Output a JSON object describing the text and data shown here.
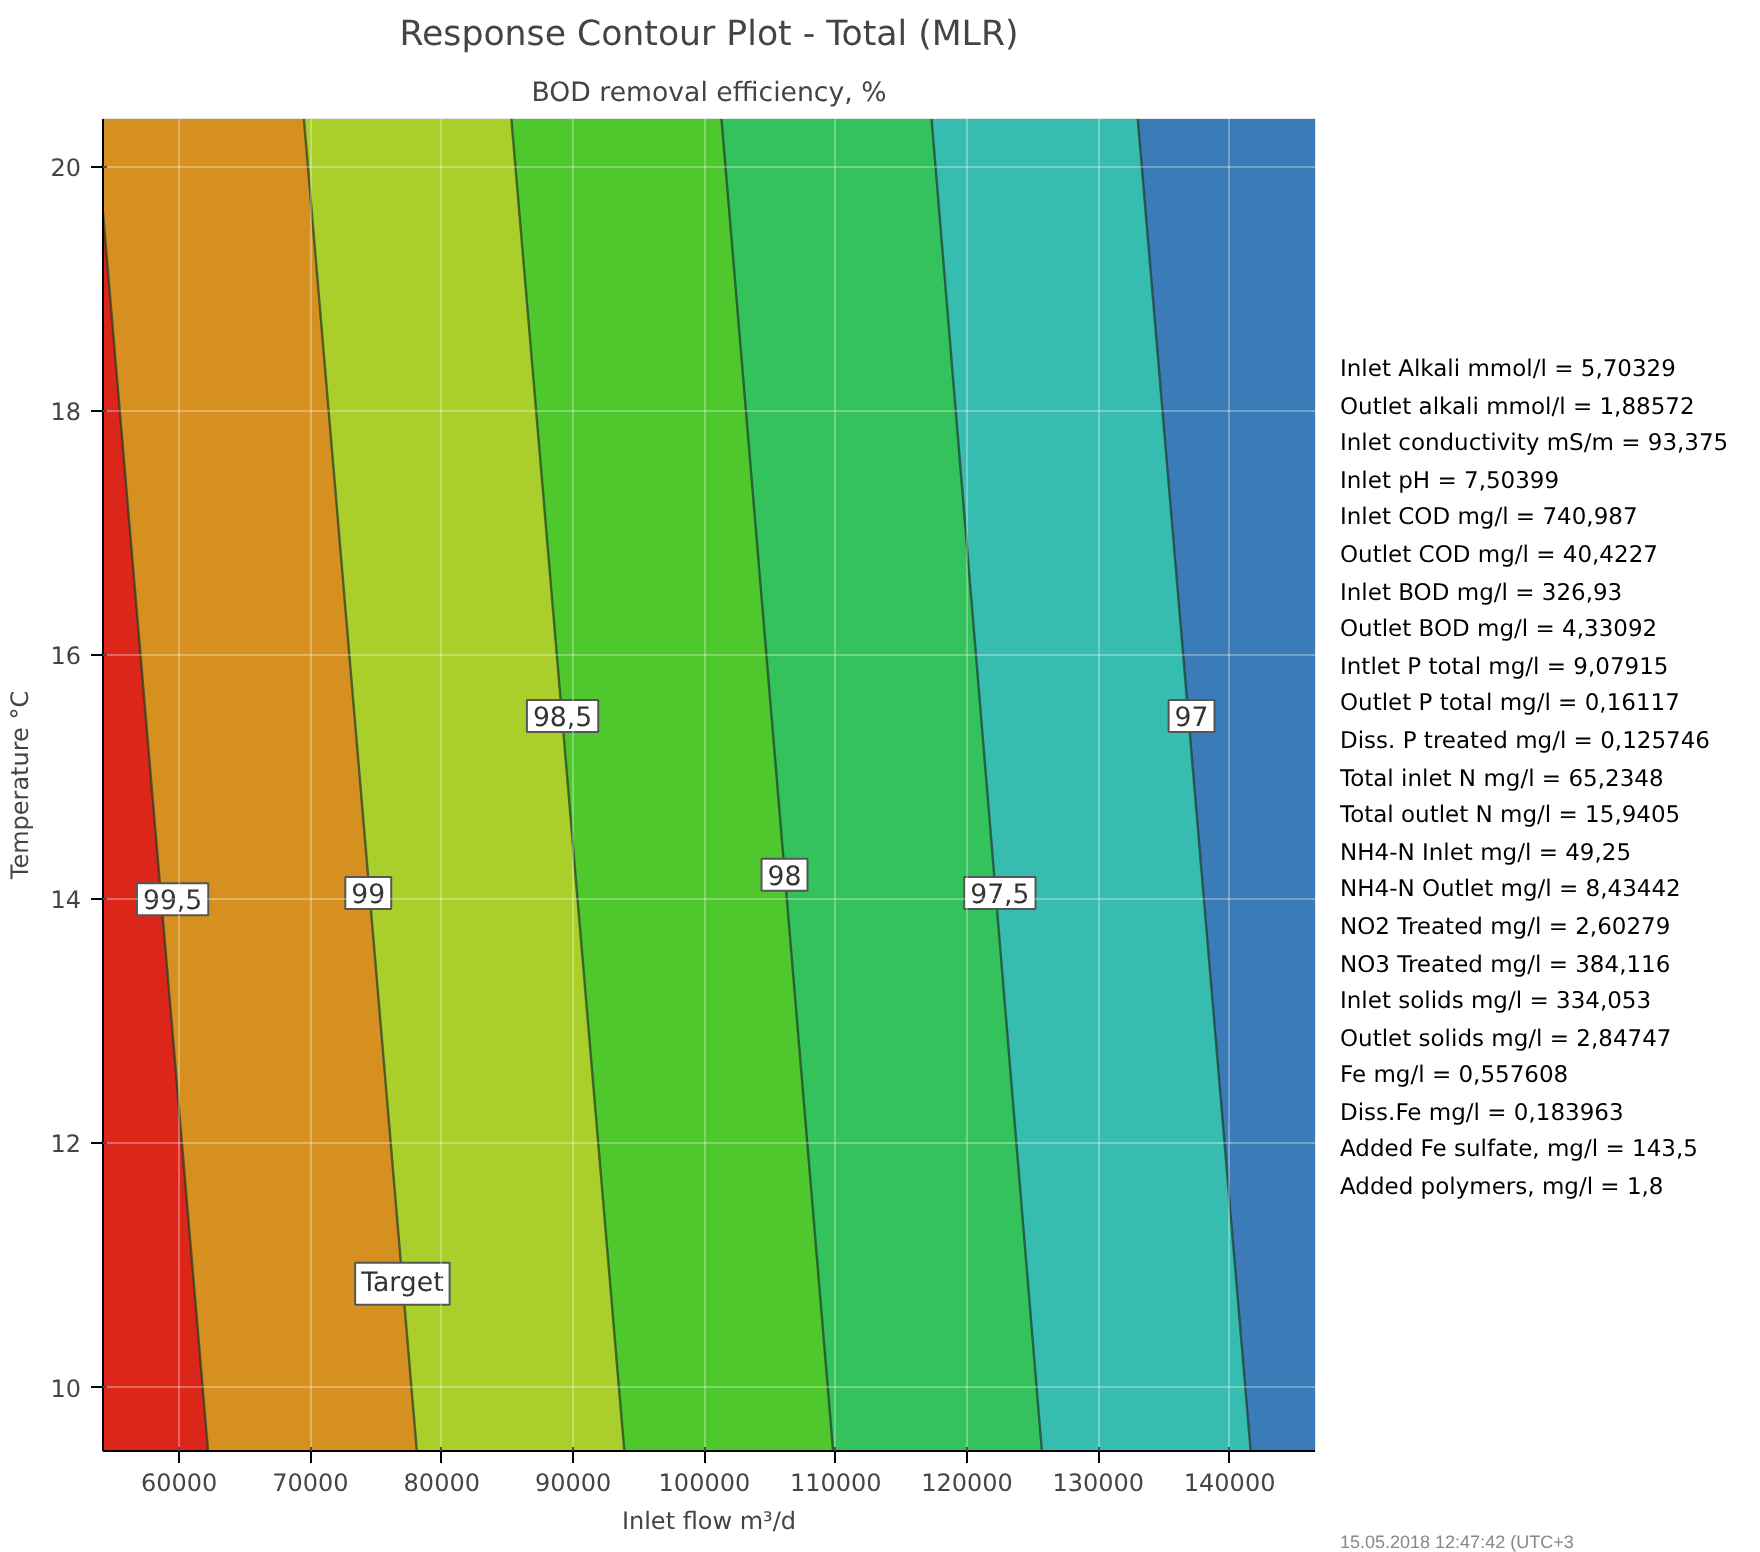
{
  "chart_data": {
    "type": "area",
    "orientation": "horizontal",
    "title": "Response Contour Plot - Total (MLR)",
    "subtitle": "BOD removal efficiency, %",
    "xlabel": "Inlet flow m³/d",
    "ylabel": "Temperature °C",
    "xlim": [
      54200,
      146500
    ],
    "ylim": [
      9.48,
      20.39
    ],
    "xticks": [
      60000,
      70000,
      80000,
      90000,
      100000,
      110000,
      120000,
      130000,
      140000
    ],
    "yticks": [
      10,
      12,
      14,
      16,
      18,
      20
    ],
    "grid": true,
    "bands": [
      {
        "axis": "x",
        "from": 133000,
        "to": 146500,
        "color": "#3b7bb8"
      }
    ],
    "series": [
      {
        "color": "#36bdb0",
        "x": [
          9.48,
          20.39
        ],
        "values": [
          141600,
          133000
        ]
      },
      {
        "color": "#33c25c",
        "x": [
          9.48,
          20.39
        ],
        "values": [
          125700,
          117300
        ]
      },
      {
        "color": "#4ec82c",
        "x": [
          9.48,
          20.39
        ],
        "values": [
          109800,
          101300
        ]
      },
      {
        "color": "#abcf2a",
        "x": [
          9.48,
          20.39
        ],
        "values": [
          93900,
          85300
        ]
      },
      {
        "color": "#d69020",
        "x": [
          9.48,
          20.39
        ],
        "values": [
          78100,
          69500
        ]
      },
      {
        "color": "#dc261a",
        "x": [
          9.48,
          19.62
        ],
        "values": [
          62200,
          54200
        ]
      }
    ],
    "annotations": [
      {
        "text": "99,5",
        "x": 59500,
        "y": 14.0
      },
      {
        "text": "99",
        "x": 74400,
        "y": 14.05
      },
      {
        "text": "98,5",
        "x": 89200,
        "y": 15.5
      },
      {
        "text": "98",
        "x": 106100,
        "y": 14.2
      },
      {
        "text": "97,5",
        "x": 122500,
        "y": 14.05
      },
      {
        "text": "97",
        "x": 137100,
        "y": 15.5
      },
      {
        "text": "Target",
        "x": 77000,
        "y": 10.85
      },
      "Inlet Alkali  mmol/l = 5,70329",
      "Outlet alkali mmol/l = 1,88572",
      "Inlet conductivity  mS/m = 93,375",
      "Inlet pH = 7,50399",
      "Inlet COD  mg/l = 740,987",
      "Outlet COD mg/l = 40,4227",
      "Inlet BOD  mg/l = 326,93",
      "Outlet BOD mg/l = 4,33092",
      "Intlet P total  mg/l = 9,07915",
      "Outlet P total mg/l = 0,16117",
      "Diss. P treated mg/l = 0,125746",
      "Total inlet N mg/l = 65,2348",
      "Total outlet N mg/l = 15,9405",
      "NH4-N Inlet mg/l = 49,25",
      "NH4-N Outlet mg/l = 8,43442",
      "NO2 Treated mg/l = 2,60279",
      "NO3 Treated mg/l = 384,116",
      "Inlet solids mg/l = 334,053",
      "Outlet solids mg/l = 2,84747",
      "Fe  mg/l = 0,557608",
      "Diss.Fe mg/l = 0,183963",
      "Added Fe sulfate, mg/l = 143,5",
      "Added polymers, mg/l = 1,8",
      "15.05.2018 12:47:42 (UTC+3"
    ]
  }
}
